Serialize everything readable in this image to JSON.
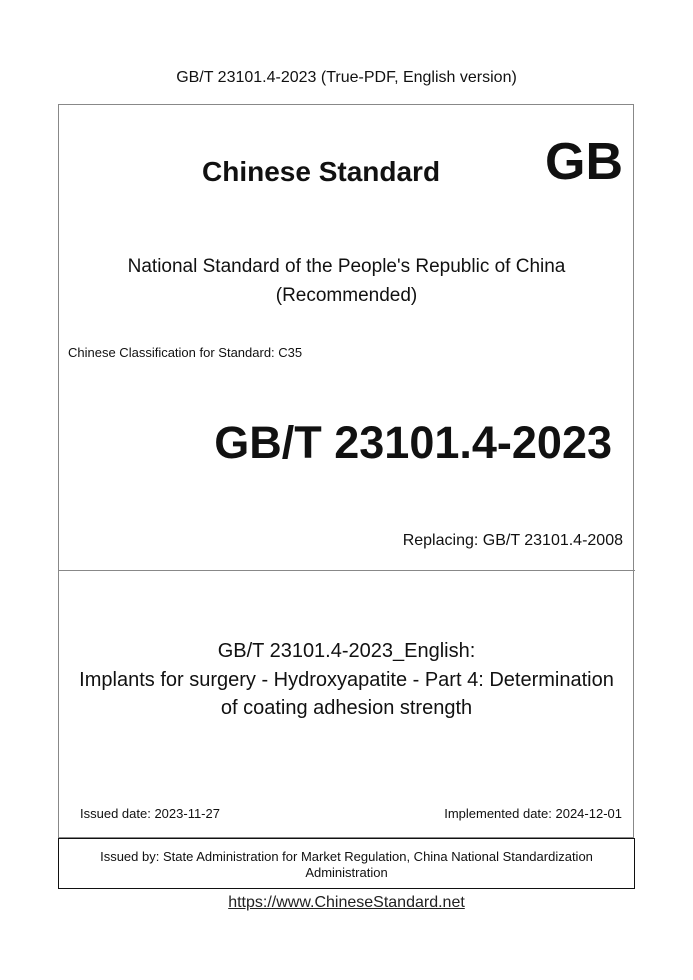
{
  "header": {
    "title": "GB/T 23101.4-2023 (True-PDF, English version)"
  },
  "cover": {
    "brand": "Chinese Standard",
    "mark": "GB",
    "national_line": "National Standard of the People's Republic of China",
    "recommended": "(Recommended)",
    "classification": "Chinese Classification for Standard: C35",
    "standard_number": "GB/T 23101.4-2023",
    "replacing": "Replacing: GB/T 23101.4-2008"
  },
  "title": {
    "lines": [
      "GB/T 23101.4-2023_English:",
      "Implants for surgery - Hydroxyapatite - Part 4: Determination",
      "of coating adhesion strength"
    ]
  },
  "dates": {
    "issued": "Issued date: 2023-11-27",
    "implemented": "Implemented date: 2024-12-01"
  },
  "issuer": {
    "line1": "Issued by: State Administration for Market Regulation, China National Standardization",
    "line2": "Administration"
  },
  "footer": {
    "url": "https://www.ChineseStandard.net"
  }
}
